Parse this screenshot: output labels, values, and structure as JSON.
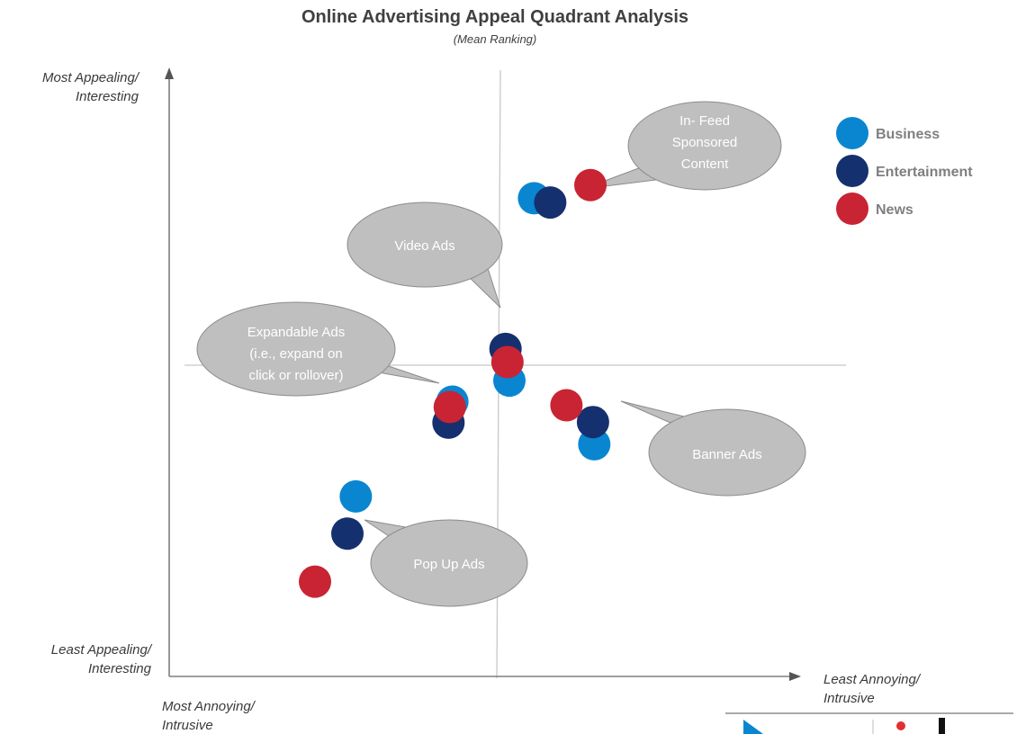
{
  "title": "Online Advertising Appeal Quadrant Analysis",
  "subtitle": "(Mean Ranking)",
  "colors": {
    "Business": "#0a86d1",
    "Entertainment": "#15306e",
    "News": "#c82433",
    "bubble": "#bfbfbf",
    "axis": "#7f7f7f"
  },
  "axis_labels": {
    "y_top": [
      "Most Appealing/",
      "Interesting"
    ],
    "y_bottom": [
      "Least Appealing/",
      "Interesting"
    ],
    "x_left": [
      "Most Annoying/",
      "Intrusive"
    ],
    "x_right": [
      "Least Annoying/",
      "Intrusive"
    ]
  },
  "chart_data": {
    "type": "scatter",
    "title": "Online Advertising Appeal Quadrant Analysis",
    "subtitle": "(Mean Ranking)",
    "xlabel": "Most Annoying/Intrusive → Least Annoying/Intrusive",
    "ylabel": "Least Appealing/Interesting → Most Appealing/Interesting",
    "xlim": [
      0,
      100
    ],
    "ylim": [
      0,
      100
    ],
    "legend_position": "top-right",
    "grid": false,
    "categories": [
      "In- Feed Sponsored Content",
      "Video Ads",
      "Expandable Ads (i.e., expand on click or rollover)",
      "Banner Ads",
      "Pop Up Ads"
    ],
    "series": [
      {
        "name": "Business",
        "points": [
          {
            "ad": "In- Feed Sponsored Content",
            "x": 56.3,
            "y": 79.7
          },
          {
            "ad": "Video Ads",
            "x": 52.5,
            "y": 49.3
          },
          {
            "ad": "Expandable Ads",
            "x": 43.7,
            "y": 45.8
          },
          {
            "ad": "Banner Ads",
            "x": 65.6,
            "y": 38.7
          },
          {
            "ad": "Pop Up Ads",
            "x": 28.8,
            "y": 30.0
          }
        ]
      },
      {
        "name": "Entertainment",
        "points": [
          {
            "ad": "In- Feed Sponsored Content",
            "x": 58.8,
            "y": 79.0
          },
          {
            "ad": "Video Ads",
            "x": 51.9,
            "y": 54.6
          },
          {
            "ad": "Expandable Ads",
            "x": 43.1,
            "y": 42.3
          },
          {
            "ad": "Banner Ads",
            "x": 65.4,
            "y": 42.4
          },
          {
            "ad": "Pop Up Ads",
            "x": 27.5,
            "y": 23.8
          }
        ]
      },
      {
        "name": "News",
        "points": [
          {
            "ad": "In- Feed Sponsored Content",
            "x": 65.0,
            "y": 81.9
          },
          {
            "ad": "Video Ads",
            "x": 52.2,
            "y": 52.4
          },
          {
            "ad": "Expandable Ads",
            "x": 43.3,
            "y": 44.9
          },
          {
            "ad": "Banner Ads",
            "x": 61.3,
            "y": 45.2
          },
          {
            "ad": "Pop Up Ads",
            "x": 22.5,
            "y": 15.8
          }
        ]
      }
    ],
    "annotations": [
      {
        "label": [
          "In- Feed",
          "Sponsored",
          "Content"
        ],
        "target": "In- Feed Sponsored Content"
      },
      {
        "label": [
          "Video Ads"
        ],
        "target": "Video Ads"
      },
      {
        "label": [
          "Expandable Ads",
          "(i.e., expand on",
          "click or rollover)"
        ],
        "target": "Expandable Ads"
      },
      {
        "label": [
          "Banner Ads"
        ],
        "target": "Banner Ads"
      },
      {
        "label": [
          "Pop Up Ads"
        ],
        "target": "Pop Up Ads"
      }
    ]
  }
}
